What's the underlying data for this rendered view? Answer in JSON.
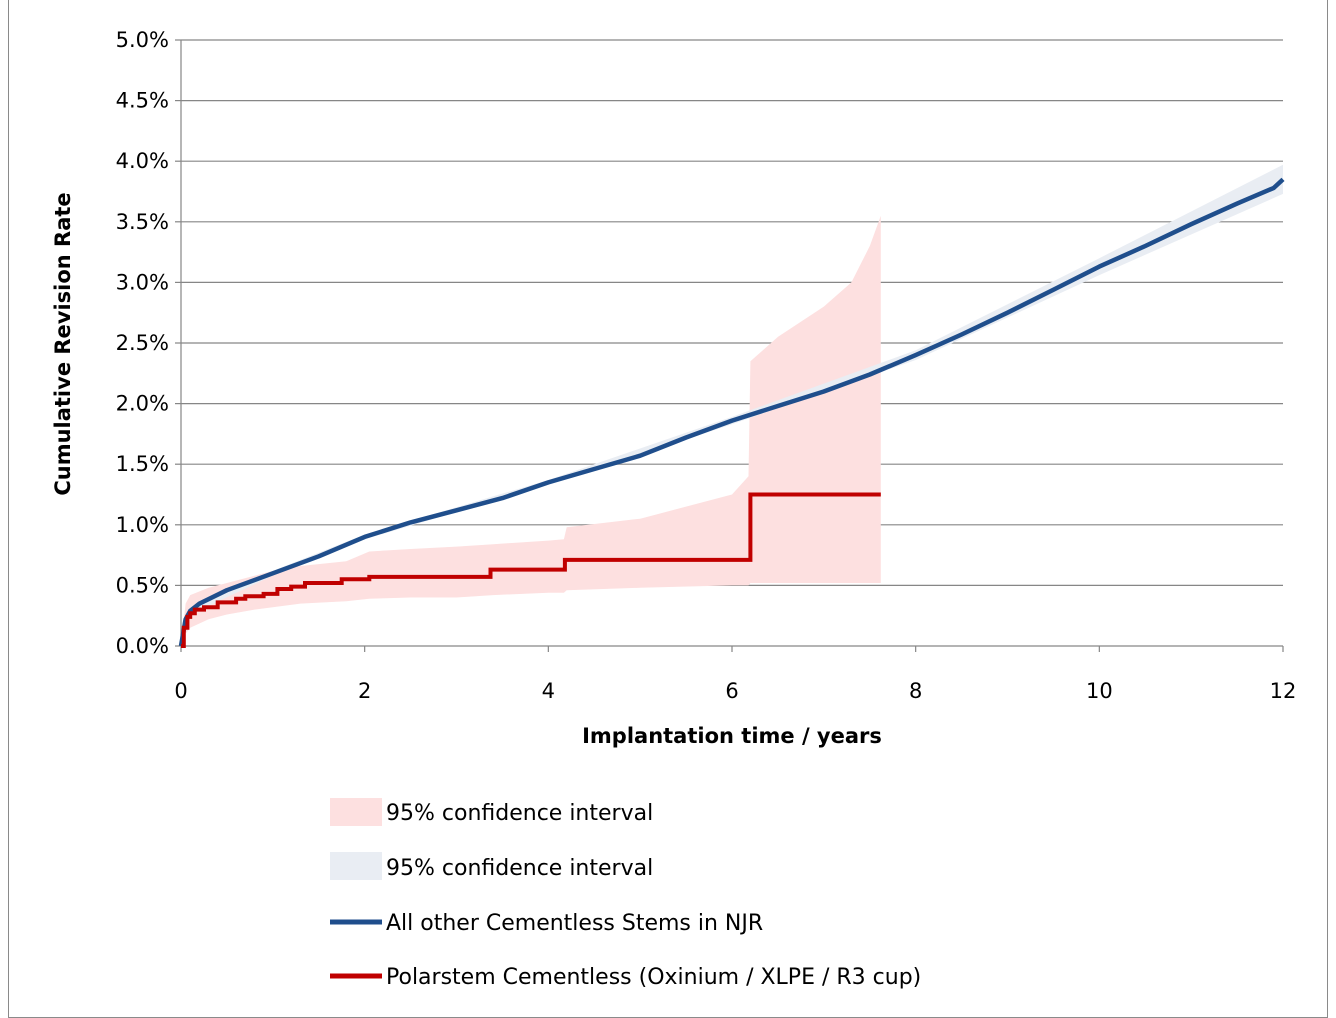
{
  "chart_data": {
    "type": "line",
    "xlabel": "Implantation time  / years",
    "ylabel": "Cumulative Revision Rate",
    "xlim": [
      0,
      12
    ],
    "ylim": [
      0,
      5.0
    ],
    "x_ticks": [
      "0",
      "2",
      "4",
      "6",
      "8",
      "10",
      "12"
    ],
    "y_ticks": [
      "0.0%",
      "0.5%",
      "1.0%",
      "1.5%",
      "2.0%",
      "2.5%",
      "3.0%",
      "3.5%",
      "4.0%",
      "4.5%",
      "5.0%"
    ],
    "grid": "horizontal",
    "legend_position": "bottom",
    "colors": {
      "polar": "#c00000",
      "polar_ci": "#fde0e0",
      "other": "#1f4e8c",
      "other_ci": "#e9edf3"
    },
    "series": [
      {
        "name": "95% confidence interval",
        "kind": "band",
        "of": "Polarstem Cementless (Oxinium / XLPE / R3 cup)",
        "x": [
          0,
          0.05,
          0.1,
          0.3,
          0.5,
          0.8,
          1.0,
          1.3,
          1.8,
          2.05,
          2.5,
          3.0,
          3.4,
          4.0,
          4.17,
          4.2,
          5.0,
          6.0,
          6.18,
          6.2,
          6.5,
          7.0,
          7.3,
          7.5,
          7.62
        ],
        "lower": [
          0,
          0.1,
          0.15,
          0.22,
          0.26,
          0.3,
          0.32,
          0.35,
          0.37,
          0.39,
          0.4,
          0.4,
          0.42,
          0.44,
          0.44,
          0.46,
          0.48,
          0.5,
          0.5,
          0.52,
          0.52,
          0.52,
          0.52,
          0.52,
          0.52
        ],
        "upper": [
          0,
          0.35,
          0.42,
          0.48,
          0.52,
          0.58,
          0.62,
          0.66,
          0.7,
          0.78,
          0.8,
          0.82,
          0.84,
          0.87,
          0.88,
          0.98,
          1.05,
          1.25,
          1.4,
          2.35,
          2.55,
          2.8,
          3.0,
          3.3,
          3.55
        ]
      },
      {
        "name": "95% confidence interval",
        "kind": "band",
        "of": "All other Cementless Stems in NJR",
        "x": [
          0,
          0.1,
          1,
          2,
          4,
          6,
          8,
          10,
          12
        ],
        "lower": [
          0,
          0.26,
          0.58,
          0.88,
          1.33,
          1.83,
          2.36,
          3.06,
          3.73
        ],
        "upper": [
          0,
          0.32,
          0.62,
          0.92,
          1.37,
          1.89,
          2.44,
          3.2,
          3.97
        ]
      },
      {
        "name": "All other Cementless Stems in NJR",
        "kind": "line",
        "x": [
          0,
          0.05,
          0.1,
          0.2,
          0.5,
          1.0,
          1.5,
          2.0,
          2.5,
          3.0,
          3.5,
          4.0,
          4.5,
          5.0,
          5.5,
          6.0,
          6.5,
          7.0,
          7.5,
          8.0,
          8.5,
          9.0,
          9.5,
          10.0,
          10.5,
          11.0,
          11.5,
          11.9,
          12.0
        ],
        "y": [
          0,
          0.22,
          0.29,
          0.35,
          0.46,
          0.6,
          0.74,
          0.9,
          1.02,
          1.12,
          1.22,
          1.35,
          1.46,
          1.57,
          1.72,
          1.86,
          1.98,
          2.1,
          2.24,
          2.4,
          2.57,
          2.75,
          2.94,
          3.13,
          3.3,
          3.48,
          3.65,
          3.78,
          3.85
        ]
      },
      {
        "name": "Polarstem Cementless (Oxinium / XLPE / R3 cup)",
        "kind": "step",
        "x": [
          0,
          0.03,
          0.07,
          0.1,
          0.15,
          0.25,
          0.4,
          0.6,
          0.7,
          0.9,
          1.05,
          1.2,
          1.35,
          1.75,
          2.05,
          3.37,
          4.18,
          6.2,
          7.62
        ],
        "y": [
          0,
          0.15,
          0.24,
          0.27,
          0.3,
          0.32,
          0.36,
          0.39,
          0.41,
          0.43,
          0.47,
          0.49,
          0.52,
          0.55,
          0.57,
          0.63,
          0.71,
          1.25,
          1.25
        ]
      }
    ]
  }
}
